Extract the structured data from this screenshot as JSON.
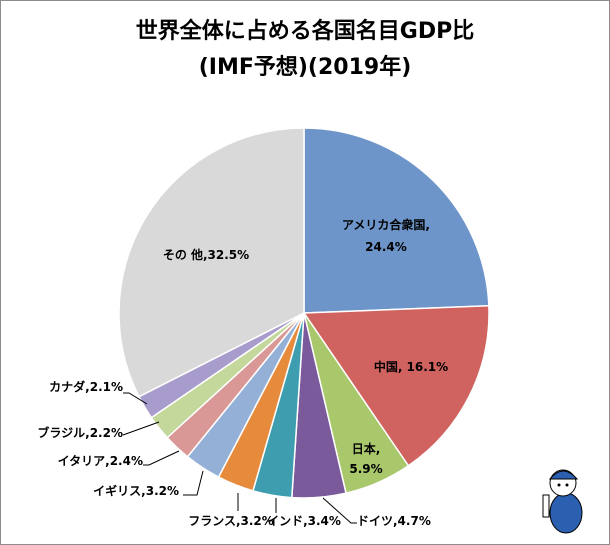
{
  "chart_data": {
    "type": "pie",
    "title": "世界全体に占める各国名目GDP比",
    "subtitle": "(IMF予想)(2019年)",
    "unit": "%",
    "slices": [
      {
        "label": "アメリカ合衆国",
        "value": 24.4,
        "text": "24.4%",
        "color": "#6d95c9"
      },
      {
        "label": "中国",
        "value": 16.1,
        "text": "16.1%",
        "color": "#d0625f"
      },
      {
        "label": "日本",
        "value": 5.9,
        "text": "5.9%",
        "color": "#a9c76b"
      },
      {
        "label": "ドイツ",
        "value": 4.7,
        "text": "4.7%",
        "color": "#7a5a9b"
      },
      {
        "label": "インド",
        "value": 3.4,
        "text": "3.4%",
        "color": "#3f9db0"
      },
      {
        "label": "フランス",
        "value": 3.2,
        "text": "3.2%",
        "color": "#e68a3c"
      },
      {
        "label": "イギリス",
        "value": 3.2,
        "text": "3.2%",
        "color": "#95b0d6"
      },
      {
        "label": "イタリア",
        "value": 2.4,
        "text": "2.4%",
        "color": "#d99795"
      },
      {
        "label": "ブラジル",
        "value": 2.2,
        "text": "2.2%",
        "color": "#c4d89c"
      },
      {
        "label": "カナダ",
        "value": 2.1,
        "text": "2.1%",
        "color": "#a79ccb"
      },
      {
        "label": "その 他",
        "value": 32.5,
        "text": "32.5%",
        "color": "#d9d9d9"
      }
    ]
  }
}
